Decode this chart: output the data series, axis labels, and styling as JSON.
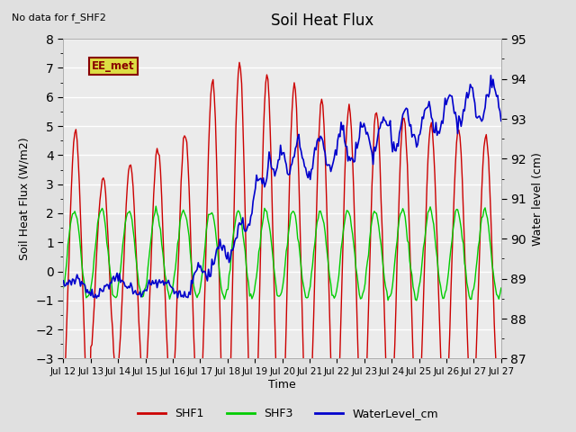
{
  "title": "Soil Heat Flux",
  "note": "No data for f_SHF2",
  "ylabel_left": "Soil Heat Flux (W/m2)",
  "ylabel_right": "Water level (cm)",
  "xlabel": "Time",
  "ylim_left": [
    -3.0,
    8.0
  ],
  "ylim_right": [
    87.0,
    95.0
  ],
  "fig_bg_color": "#e0e0e0",
  "plot_bg_color": "#ebebeb",
  "grid_color": "#ffffff",
  "xtick_labels": [
    "Jul 12",
    "Jul 13",
    "Jul 14",
    "Jul 15",
    "Jul 16",
    "Jul 17",
    "Jul 18",
    "Jul 19",
    "Jul 20",
    "Jul 21",
    "Jul 22",
    "Jul 23",
    "Jul 24",
    "Jul 25",
    "Jul 26",
    "Jul 27"
  ],
  "shf1_color": "#cc0000",
  "shf3_color": "#00cc00",
  "water_color": "#0000cc",
  "ee_met_fg": "#880000",
  "ee_met_bg": "#dddd44",
  "legend_entries": [
    "SHF1",
    "SHF3",
    "WaterLevel_cm"
  ]
}
